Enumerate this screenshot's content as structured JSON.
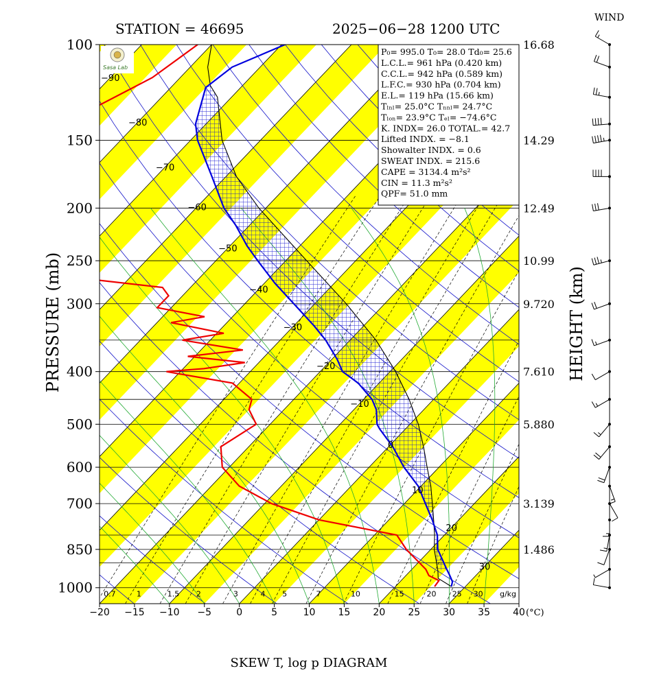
{
  "header": {
    "station": "STATION = 46695",
    "datetime": "2025−06−28 1200 UTC",
    "wind_label": "WIND",
    "logo_text": "Sasa Lab"
  },
  "axes": {
    "ylabel": "PRESSURE (mb)",
    "ylabel_right": "HEIGHT (km)",
    "xlabel": "SKEW T, log p DIAGRAM",
    "x_unit": "(°C)",
    "x_ticks": [
      "−20",
      "−15",
      "−10",
      "−5",
      "0",
      "5",
      "10",
      "15",
      "20",
      "25",
      "30",
      "35",
      "40"
    ],
    "x_values": [
      -20,
      -15,
      -10,
      -5,
      0,
      5,
      10,
      15,
      20,
      25,
      30,
      35,
      40
    ],
    "pressure_ticks": [
      "100",
      "150",
      "200",
      "250",
      "300",
      "400",
      "500",
      "600",
      "700",
      "850",
      "1000"
    ],
    "pressure_values": [
      100,
      150,
      200,
      250,
      300,
      400,
      500,
      600,
      700,
      850,
      1000
    ],
    "height_ticks": [
      "16.68",
      "14.29",
      "12.49",
      "10.99",
      "9.720",
      "7.610",
      "5.880",
      "3.139",
      "1.486"
    ],
    "height_pressures": [
      100,
      150,
      200,
      250,
      300,
      400,
      500,
      700,
      850
    ],
    "p_range": [
      100,
      1000
    ],
    "t_range_at_base": [
      -20,
      40
    ]
  },
  "isotherm_labels": [
    {
      "text": "−90",
      "t": -90,
      "p": 115
    },
    {
      "text": "−80",
      "t": -80,
      "p": 139
    },
    {
      "text": "−70",
      "t": -70,
      "p": 168
    },
    {
      "text": "−60",
      "t": -60,
      "p": 199
    },
    {
      "text": "−50",
      "t": -50,
      "p": 237
    },
    {
      "text": "−40",
      "t": -40,
      "p": 282
    },
    {
      "text": "−30",
      "t": -30,
      "p": 331
    },
    {
      "text": "−20",
      "t": -20,
      "p": 390
    },
    {
      "text": "−10",
      "t": -10,
      "p": 458
    },
    {
      "text": "0",
      "t": 0,
      "p": 545
    },
    {
      "text": "10",
      "t": 10,
      "p": 660
    },
    {
      "text": "20",
      "t": 20,
      "p": 775
    },
    {
      "text": "30",
      "t": 30,
      "p": 913
    }
  ],
  "mixing_ratio_labels": [
    "0.7",
    "1",
    "1.5",
    "2",
    "3",
    "4",
    "5",
    "7",
    "10",
    "15",
    "20",
    "25",
    "30",
    "g/kg"
  ],
  "mixing_ratio_values": [
    0.7,
    1,
    1.5,
    2,
    3,
    4,
    5,
    7,
    10,
    15,
    20,
    25,
    30
  ],
  "indices": {
    "lines": [
      {
        "label": "P₀= 995.0 T₀= 28.0 Td₀= 25.6"
      },
      {
        "label": "L.C.L.= 961 hPa (0.420 km)"
      },
      {
        "label": "C.C.L.= 942 hPa (0.589 km)"
      },
      {
        "label": "L.F.C.= 930 hPa (0.704 km)"
      },
      {
        "label": "E.L.= 119 hPa (15.66 km)"
      },
      {
        "label": "Tₗₙₗ= 25.0°C Tₙₙₗ= 24.7°C"
      },
      {
        "label": "Tₗₒₙ= 23.9°C Tₑₗ= −74.6°C"
      },
      {
        "label": "K. INDX= 26.0  TOTAL.= 42.7"
      },
      {
        "label": "Lifted INDX. =  −8.1"
      },
      {
        "label": "Showalter INDX. =   0.6"
      },
      {
        "label": "SWEAT INDX. =  215.6"
      },
      {
        "label": "CAPE = 3134.4 m²s²"
      },
      {
        "label": "CIN  =   11.3 m²s²"
      },
      {
        "label": "QPF= 51.0 mm"
      }
    ]
  },
  "chart_data": {
    "type": "line",
    "title": "SKEW T, log p DIAGRAM",
    "xlabel": "(°C)",
    "ylabel": "PRESSURE (mb)",
    "grid": true,
    "series": [
      {
        "color": "#0000dd",
        "points": [
          {
            "p": 995,
            "t": 28.0
          },
          {
            "p": 975,
            "t": 27.5
          },
          {
            "p": 950,
            "t": 26.3
          },
          {
            "p": 925,
            "t": 25.0
          },
          {
            "p": 850,
            "t": 21.0
          },
          {
            "p": 800,
            "t": 19.0
          },
          {
            "p": 750,
            "t": 16.2
          },
          {
            "p": 700,
            "t": 13.0
          },
          {
            "p": 650,
            "t": 9.6
          },
          {
            "p": 600,
            "t": 5.0
          },
          {
            "p": 550,
            "t": 0.6
          },
          {
            "p": 510,
            "t": -3.7
          },
          {
            "p": 500,
            "t": -4.7
          },
          {
            "p": 470,
            "t": -6.8
          },
          {
            "p": 450,
            "t": -8.8
          },
          {
            "p": 420,
            "t": -13.0
          },
          {
            "p": 400,
            "t": -16.8
          },
          {
            "p": 380,
            "t": -19.2
          },
          {
            "p": 350,
            "t": -23.5
          },
          {
            "p": 330,
            "t": -27.0
          },
          {
            "p": 300,
            "t": -33.0
          },
          {
            "p": 275,
            "t": -38.5
          },
          {
            "p": 250,
            "t": -44.0
          },
          {
            "p": 235,
            "t": -47.5
          },
          {
            "p": 215,
            "t": -52.0
          },
          {
            "p": 200,
            "t": -56.0
          },
          {
            "p": 175,
            "t": -62.0
          },
          {
            "p": 150,
            "t": -69.0
          },
          {
            "p": 140,
            "t": -71.5
          },
          {
            "p": 120,
            "t": -75.0
          },
          {
            "p": 110,
            "t": -74.0
          },
          {
            "p": 100,
            "t": -69.5
          }
        ]
      },
      {
        "color": "#ee0000",
        "points": [
          {
            "p": 995,
            "t": 25.6
          },
          {
            "p": 970,
            "t": 25.4
          },
          {
            "p": 950,
            "t": 23.3
          },
          {
            "p": 925,
            "t": 22.0
          },
          {
            "p": 850,
            "t": 16.5
          },
          {
            "p": 800,
            "t": 13.2
          },
          {
            "p": 750,
            "t": 0.0
          },
          {
            "p": 700,
            "t": -9.0
          },
          {
            "p": 650,
            "t": -16.0
          },
          {
            "p": 600,
            "t": -21.0
          },
          {
            "p": 550,
            "t": -24.0
          },
          {
            "p": 500,
            "t": -22.0
          },
          {
            "p": 470,
            "t": -25.0
          },
          {
            "p": 450,
            "t": -26.0
          },
          {
            "p": 420,
            "t": -31.0
          },
          {
            "p": 400,
            "t": -42.0
          },
          {
            "p": 395,
            "t": -37.0
          },
          {
            "p": 385,
            "t": -32.0
          },
          {
            "p": 375,
            "t": -41.0
          },
          {
            "p": 365,
            "t": -34.0
          },
          {
            "p": 350,
            "t": -44.0
          },
          {
            "p": 340,
            "t": -39.0
          },
          {
            "p": 325,
            "t": -48.0
          },
          {
            "p": 317,
            "t": -44.0
          },
          {
            "p": 305,
            "t": -52.0
          },
          {
            "p": 290,
            "t": -52.0
          },
          {
            "p": 280,
            "t": -54.0
          },
          {
            "p": 270,
            "t": -66.0
          },
          {
            "p": 255,
            "t": -72.0
          },
          {
            "p": 250,
            "t": -74.0
          },
          {
            "p": 230,
            "t": -76.0
          },
          {
            "p": 210,
            "t": -83.0
          },
          {
            "p": 200,
            "t": -87.0
          },
          {
            "p": 190,
            "t": -92.0
          },
          {
            "p": 180,
            "t": -78.0
          },
          {
            "p": 165,
            "t": -80.0
          },
          {
            "p": 150,
            "t": -84.0
          },
          {
            "p": 143,
            "t": -96.0
          },
          {
            "p": 130,
            "t": -88.0
          },
          {
            "p": 115,
            "t": -84.0
          },
          {
            "p": 100,
            "t": -82.0
          }
        ]
      },
      {
        "color": "#000000",
        "points": [
          {
            "p": 995,
            "t": 28.0
          },
          {
            "p": 961,
            "t": 25.0
          },
          {
            "p": 930,
            "t": 23.9
          },
          {
            "p": 850,
            "t": 20.5
          },
          {
            "p": 800,
            "t": 18.6
          },
          {
            "p": 750,
            "t": 16.4
          },
          {
            "p": 700,
            "t": 14.0
          },
          {
            "p": 650,
            "t": 11.4
          },
          {
            "p": 600,
            "t": 8.3
          },
          {
            "p": 550,
            "t": 5.0
          },
          {
            "p": 500,
            "t": 1.2
          },
          {
            "p": 450,
            "t": -3.5
          },
          {
            "p": 400,
            "t": -9.2
          },
          {
            "p": 350,
            "t": -16.3
          },
          {
            "p": 300,
            "t": -25.5
          },
          {
            "p": 250,
            "t": -37.0
          },
          {
            "p": 200,
            "t": -51.0
          },
          {
            "p": 175,
            "t": -58.5
          },
          {
            "p": 150,
            "t": -65.5
          },
          {
            "p": 125,
            "t": -72.0
          },
          {
            "p": 119,
            "t": -74.6
          },
          {
            "p": 110,
            "t": -77.5
          },
          {
            "p": 100,
            "t": -80.0
          }
        ]
      }
    ],
    "wind": [
      {
        "p": 1000,
        "dir": 280,
        "spd": 10
      },
      {
        "p": 925,
        "dir": 240,
        "spd": 5
      },
      {
        "p": 850,
        "dir": 200,
        "spd": 10
      },
      {
        "p": 800,
        "dir": 190,
        "spd": 15
      },
      {
        "p": 750,
        "dir": 180,
        "spd": 15
      },
      {
        "p": 700,
        "dir": 150,
        "spd": 10
      },
      {
        "p": 650,
        "dir": 160,
        "spd": 15
      },
      {
        "p": 600,
        "dir": 200,
        "spd": 20
      },
      {
        "p": 550,
        "dir": 220,
        "spd": 20
      },
      {
        "p": 500,
        "dir": 220,
        "spd": 15
      },
      {
        "p": 450,
        "dir": 240,
        "spd": 15
      },
      {
        "p": 400,
        "dir": 240,
        "spd": 10
      },
      {
        "p": 350,
        "dir": 250,
        "spd": 15
      },
      {
        "p": 300,
        "dir": 250,
        "spd": 20
      },
      {
        "p": 250,
        "dir": 255,
        "spd": 35
      },
      {
        "p": 200,
        "dir": 260,
        "spd": 30
      },
      {
        "p": 175,
        "dir": 270,
        "spd": 40
      },
      {
        "p": 150,
        "dir": 260,
        "spd": 45
      },
      {
        "p": 140,
        "dir": 265,
        "spd": 40
      },
      {
        "p": 125,
        "dir": 280,
        "spd": 25
      },
      {
        "p": 110,
        "dir": 290,
        "spd": 20
      },
      {
        "p": 100,
        "dir": 300,
        "spd": 15
      }
    ]
  }
}
